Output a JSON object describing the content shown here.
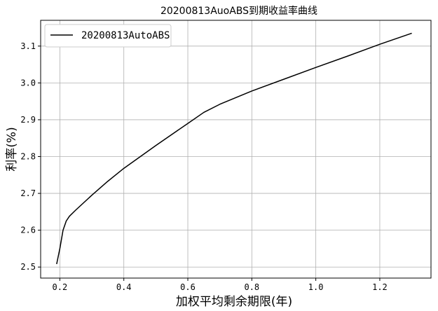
{
  "chart_data": {
    "type": "line",
    "title": "20200813AuoABS到期收益率曲线",
    "xlabel": "加权平均剩余期限(年)",
    "ylabel": "利率(%)",
    "xlim": [
      0.14,
      1.36
    ],
    "ylim": [
      2.47,
      3.17
    ],
    "xticks": [
      0.2,
      0.4,
      0.6,
      0.8,
      1.0,
      1.2
    ],
    "yticks": [
      2.5,
      2.6,
      2.7,
      2.8,
      2.9,
      3.0,
      3.1
    ],
    "grid": true,
    "legend_position": "top-left",
    "line_color": "#000000",
    "series": [
      {
        "name": "20200813AutoABS",
        "x": [
          0.19,
          0.2,
          0.21,
          0.22,
          0.23,
          0.25,
          0.3,
          0.35,
          0.4,
          0.5,
          0.6,
          0.65,
          0.7,
          0.8,
          0.9,
          1.0,
          1.1,
          1.2,
          1.3
        ],
        "y": [
          2.508,
          2.55,
          2.6,
          2.625,
          2.638,
          2.655,
          2.695,
          2.733,
          2.768,
          2.83,
          2.89,
          2.92,
          2.942,
          2.978,
          3.01,
          3.042,
          3.073,
          3.105,
          3.135
        ]
      }
    ]
  }
}
